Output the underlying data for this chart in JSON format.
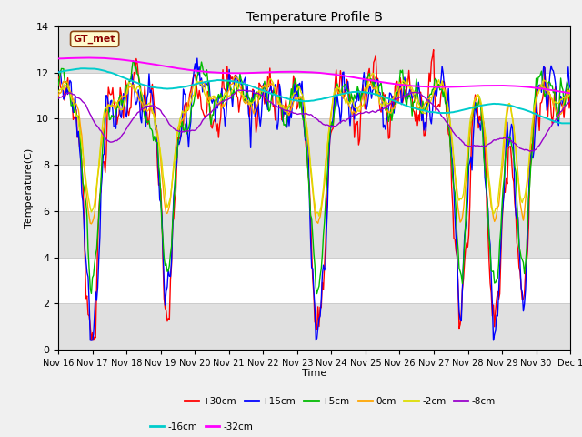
{
  "title": "Temperature Profile B",
  "xlabel": "Time",
  "ylabel": "Temperature(C)",
  "ylim": [
    0,
    14
  ],
  "yticks": [
    0,
    2,
    4,
    6,
    8,
    10,
    12,
    14
  ],
  "x_tick_labels": [
    "Nov 16",
    "Nov 17",
    "Nov 18",
    "Nov 19",
    "Nov 20",
    "Nov 21",
    "Nov 22",
    "Nov 23",
    "Nov 24",
    "Nov 25",
    "Nov 26",
    "Nov 27",
    "Nov 28",
    "Nov 29",
    "Nov 30",
    "Dec 1"
  ],
  "legend_label": "GT_met",
  "legend_text_color": "#8B0000",
  "legend_box_facecolor": "#FFFACD",
  "legend_box_edgecolor": "#8B4513",
  "series": {
    "+30cm": {
      "color": "#FF0000",
      "lw": 1.0
    },
    "+15cm": {
      "color": "#0000FF",
      "lw": 1.0
    },
    "+5cm": {
      "color": "#00BB00",
      "lw": 1.0
    },
    "0cm": {
      "color": "#FFA500",
      "lw": 1.0
    },
    "-2cm": {
      "color": "#DDDD00",
      "lw": 1.0
    },
    "-8cm": {
      "color": "#9900CC",
      "lw": 1.0
    },
    "-16cm": {
      "color": "#00CCCC",
      "lw": 1.4
    },
    "-32cm": {
      "color": "#FF00FF",
      "lw": 1.4
    }
  },
  "bg_color": "#f0f0f0",
  "plot_bg": "#ffffff",
  "band_color": "#e0e0e0"
}
